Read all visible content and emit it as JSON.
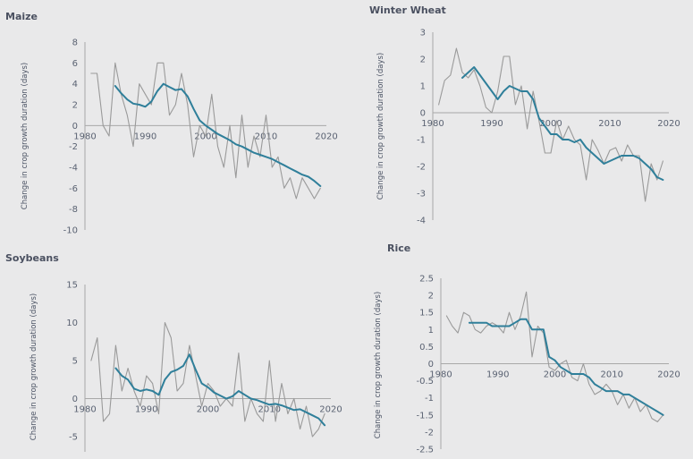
{
  "colors": {
    "background": "#e9e9ea",
    "annual": "#9a9a9a",
    "smoothed": "#2f7f9a",
    "axis": "#a8a8a8"
  },
  "chart_data": [
    {
      "type": "line",
      "title": "Maize",
      "xlabel": "",
      "ylabel": "Change in crop growth duration (days)",
      "xlim": [
        1980,
        2020
      ],
      "ylim": [
        -10,
        8
      ],
      "xticks": [
        1980,
        1990,
        2000,
        2010,
        2020
      ],
      "yticks": [
        8,
        6,
        4,
        2,
        0,
        -2,
        -4,
        -6,
        -8,
        -10
      ],
      "grid": false,
      "series": [
        {
          "style": "annual",
          "x": [
            1981,
            1982,
            1983,
            1984,
            1985,
            1986,
            1987,
            1988,
            1989,
            1990,
            1991,
            1992,
            1993,
            1994,
            1995,
            1996,
            1997,
            1998,
            1999,
            2000,
            2001,
            2002,
            2003,
            2004,
            2005,
            2006,
            2007,
            2008,
            2009,
            2010,
            2011,
            2012,
            2013,
            2014,
            2015,
            2016,
            2017,
            2018,
            2019
          ],
          "y": [
            5,
            5,
            0,
            -1,
            6,
            3,
            1,
            -2,
            4,
            3,
            2,
            6,
            6,
            1,
            2,
            5,
            2,
            -3,
            0,
            -1,
            3,
            -2,
            -4,
            0,
            -5,
            1,
            -4,
            -1,
            -3,
            1,
            -4,
            -3,
            -6,
            -5,
            -7,
            -5,
            -6,
            -7,
            -6
          ]
        },
        {
          "style": "smoothed",
          "x": [
            1985,
            1986,
            1987,
            1988,
            1989,
            1990,
            1991,
            1992,
            1993,
            1994,
            1995,
            1996,
            1997,
            1998,
            1999,
            2000,
            2001,
            2002,
            2003,
            2004,
            2005,
            2006,
            2007,
            2008,
            2009,
            2010,
            2011,
            2012,
            2013,
            2014,
            2015,
            2016,
            2017,
            2018,
            2019
          ],
          "y": [
            3.8,
            3.1,
            2.5,
            2.1,
            2.0,
            1.8,
            2.3,
            3.3,
            4.0,
            3.7,
            3.4,
            3.5,
            2.8,
            1.6,
            0.5,
            0.0,
            -0.4,
            -0.8,
            -1.1,
            -1.4,
            -1.8,
            -2.0,
            -2.3,
            -2.6,
            -2.8,
            -3.0,
            -3.2,
            -3.5,
            -3.8,
            -4.1,
            -4.4,
            -4.7,
            -4.9,
            -5.3,
            -5.8
          ]
        }
      ]
    },
    {
      "type": "line",
      "title": "Winter Wheat",
      "xlabel": "",
      "ylabel": "Change in crop growth duration (days)",
      "xlim": [
        1980,
        2020
      ],
      "ylim": [
        -4,
        3
      ],
      "xticks": [
        1980,
        1990,
        2000,
        2010,
        2020
      ],
      "yticks": [
        3,
        2,
        1,
        0,
        -1,
        -2,
        -3,
        -4
      ],
      "grid": false,
      "series": [
        {
          "style": "annual",
          "x": [
            1981,
            1982,
            1983,
            1984,
            1985,
            1986,
            1987,
            1988,
            1989,
            1990,
            1991,
            1992,
            1993,
            1994,
            1995,
            1996,
            1997,
            1998,
            1999,
            2000,
            2001,
            2002,
            2003,
            2004,
            2005,
            2006,
            2007,
            2008,
            2009,
            2010,
            2011,
            2012,
            2013,
            2014,
            2015,
            2016,
            2017,
            2018,
            2019
          ],
          "y": [
            0.3,
            1.2,
            1.4,
            2.4,
            1.5,
            1.3,
            1.6,
            1.0,
            0.2,
            0.0,
            0.8,
            2.1,
            2.1,
            0.3,
            1.0,
            -0.6,
            0.8,
            -0.3,
            -1.5,
            -1.5,
            -0.3,
            -1.0,
            -0.5,
            -1.0,
            -1.2,
            -2.5,
            -1.0,
            -1.4,
            -1.9,
            -1.4,
            -1.3,
            -1.8,
            -1.2,
            -1.6,
            -1.6,
            -3.3,
            -1.9,
            -2.5,
            -1.8
          ]
        },
        {
          "style": "smoothed",
          "x": [
            1985,
            1986,
            1987,
            1988,
            1989,
            1990,
            1991,
            1992,
            1993,
            1994,
            1995,
            1996,
            1997,
            1998,
            1999,
            2000,
            2001,
            2002,
            2003,
            2004,
            2005,
            2006,
            2007,
            2008,
            2009,
            2010,
            2011,
            2012,
            2013,
            2014,
            2015,
            2016,
            2017,
            2018,
            2019
          ],
          "y": [
            1.3,
            1.5,
            1.7,
            1.4,
            1.1,
            0.8,
            0.5,
            0.8,
            1.0,
            0.9,
            0.8,
            0.8,
            0.5,
            -0.2,
            -0.5,
            -0.8,
            -0.8,
            -1.0,
            -1.0,
            -1.1,
            -1.0,
            -1.3,
            -1.5,
            -1.7,
            -1.9,
            -1.8,
            -1.7,
            -1.6,
            -1.6,
            -1.6,
            -1.7,
            -1.9,
            -2.1,
            -2.4,
            -2.5
          ]
        }
      ]
    },
    {
      "type": "line",
      "title": "Soybeans",
      "xlabel": "",
      "ylabel": "Change in crop growth duration (days)",
      "xlim": [
        1980,
        2020
      ],
      "ylim": [
        -7,
        15
      ],
      "xticks": [
        1980,
        1990,
        2000,
        2010,
        2020
      ],
      "yticks": [
        15,
        10,
        5,
        0,
        -5
      ],
      "grid": false,
      "series": [
        {
          "style": "annual",
          "x": [
            1981,
            1982,
            1983,
            1984,
            1985,
            1986,
            1987,
            1988,
            1989,
            1990,
            1991,
            1992,
            1993,
            1994,
            1995,
            1996,
            1997,
            1998,
            1999,
            2000,
            2001,
            2002,
            2003,
            2004,
            2005,
            2006,
            2007,
            2008,
            2009,
            2010,
            2011,
            2012,
            2013,
            2014,
            2015,
            2016,
            2017,
            2018,
            2019
          ],
          "y": [
            5,
            8,
            -3,
            -2,
            7,
            1,
            4,
            1,
            -1,
            3,
            2,
            -2,
            10,
            8,
            1,
            2,
            7,
            3,
            -1,
            2,
            1,
            -1,
            0,
            -1,
            6,
            -3,
            0,
            -2,
            -3,
            5,
            -3,
            2,
            -2,
            0,
            -4,
            -1,
            -5,
            -4,
            -2
          ]
        },
        {
          "style": "smoothed",
          "x": [
            1985,
            1986,
            1987,
            1988,
            1989,
            1990,
            1991,
            1992,
            1993,
            1994,
            1995,
            1996,
            1997,
            1998,
            1999,
            2000,
            2001,
            2002,
            2003,
            2004,
            2005,
            2006,
            2007,
            2008,
            2009,
            2010,
            2011,
            2012,
            2013,
            2014,
            2015,
            2016,
            2017,
            2018,
            2019
          ],
          "y": [
            4.0,
            3.0,
            2.5,
            1.3,
            1.0,
            1.2,
            1.0,
            0.5,
            2.5,
            3.5,
            3.8,
            4.3,
            5.8,
            3.8,
            2.0,
            1.5,
            0.8,
            0.4,
            0.0,
            0.3,
            1.0,
            0.5,
            0.0,
            -0.2,
            -0.5,
            -0.8,
            -0.7,
            -0.9,
            -1.2,
            -1.5,
            -1.4,
            -1.8,
            -2.2,
            -2.6,
            -3.5
          ]
        }
      ]
    },
    {
      "type": "line",
      "title": "Rice",
      "xlabel": "",
      "ylabel": "Change in crop growth duration (days)",
      "xlim": [
        1980,
        2020
      ],
      "ylim": [
        -2.5,
        2.5
      ],
      "xticks": [
        1980,
        1990,
        2000,
        2010,
        2020
      ],
      "yticks": [
        2.5,
        2,
        1.5,
        1,
        0.5,
        0,
        -0.5,
        -1,
        -1.5,
        -2,
        -2.5
      ],
      "ytick_labels": [
        "2.5",
        "2",
        "1.5",
        "1",
        "0.5",
        "0",
        "-0.5",
        "-1",
        "-1.5",
        "-2",
        "-2.5"
      ],
      "grid": false,
      "series": [
        {
          "style": "annual",
          "x": [
            1981,
            1982,
            1983,
            1984,
            1985,
            1986,
            1987,
            1988,
            1989,
            1990,
            1991,
            1992,
            1993,
            1994,
            1995,
            1996,
            1997,
            1998,
            1999,
            2000,
            2001,
            2002,
            2003,
            2004,
            2005,
            2006,
            2007,
            2008,
            2009,
            2010,
            2011,
            2012,
            2013,
            2014,
            2015,
            2016,
            2017,
            2018,
            2019
          ],
          "y": [
            1.4,
            1.1,
            0.9,
            1.5,
            1.4,
            1.0,
            0.9,
            1.1,
            1.2,
            1.1,
            0.9,
            1.5,
            1.0,
            1.4,
            2.1,
            0.2,
            1.1,
            0.9,
            -0.1,
            -0.2,
            0.0,
            0.1,
            -0.4,
            -0.5,
            0.0,
            -0.6,
            -0.9,
            -0.8,
            -0.6,
            -0.8,
            -1.2,
            -0.9,
            -1.3,
            -1.0,
            -1.4,
            -1.2,
            -1.6,
            -1.7,
            -1.5
          ]
        },
        {
          "style": "smoothed",
          "x": [
            1985,
            1986,
            1987,
            1988,
            1989,
            1990,
            1991,
            1992,
            1993,
            1994,
            1995,
            1996,
            1997,
            1998,
            1999,
            2000,
            2001,
            2002,
            2003,
            2004,
            2005,
            2006,
            2007,
            2008,
            2009,
            2010,
            2011,
            2012,
            2013,
            2014,
            2015,
            2016,
            2017,
            2018,
            2019
          ],
          "y": [
            1.2,
            1.2,
            1.2,
            1.2,
            1.1,
            1.1,
            1.1,
            1.1,
            1.2,
            1.3,
            1.3,
            1.0,
            1.0,
            1.0,
            0.2,
            0.1,
            -0.1,
            -0.2,
            -0.3,
            -0.3,
            -0.3,
            -0.4,
            -0.6,
            -0.7,
            -0.8,
            -0.8,
            -0.8,
            -0.9,
            -0.9,
            -1.0,
            -1.1,
            -1.2,
            -1.3,
            -1.4,
            -1.5
          ]
        }
      ]
    }
  ]
}
